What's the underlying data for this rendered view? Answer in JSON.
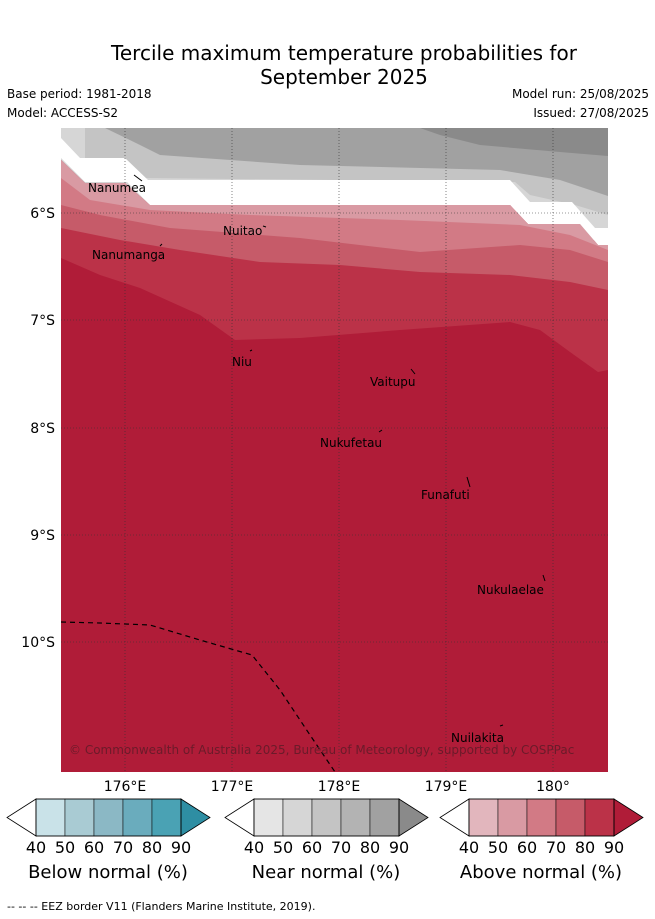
{
  "title_line1": "Tercile maximum temperature probabilities for",
  "title_line2": "September 2025",
  "base_period": "Base period: 1981-2018",
  "model": "Model: ACCESS-S2",
  "model_run": "Model run: 25/08/2025",
  "issued": "Issued: 27/08/2025",
  "map": {
    "lon_ticks": [
      "176°E",
      "177°E",
      "178°E",
      "179°E",
      "180°"
    ],
    "lat_ticks": [
      "6°S",
      "7°S",
      "8°S",
      "9°S",
      "10°S"
    ],
    "places": [
      {
        "name": "Nanumea"
      },
      {
        "name": "Nuitao"
      },
      {
        "name": "Nanumanga"
      },
      {
        "name": "Niu"
      },
      {
        "name": "Vaitupu"
      },
      {
        "name": "Nukufetau"
      },
      {
        "name": "Funafuti"
      },
      {
        "name": "Nukulaelae"
      },
      {
        "name": "Nuilakita"
      }
    ],
    "copyright": "© Commonwealth of Australia 2025, Bureau of Meteorology, supported by COSPPac"
  },
  "colorbars": [
    {
      "label": "Below normal (%)",
      "colors": [
        "#ffffff",
        "#c9e2e8",
        "#a9cbd3",
        "#8bb8c5",
        "#6aacbd",
        "#4aa2b4",
        "#2e8ea3"
      ]
    },
    {
      "label": "Near normal (%)",
      "colors": [
        "#ffffff",
        "#e5e5e5",
        "#d6d6d6",
        "#c4c4c4",
        "#b3b3b3",
        "#a1a1a1",
        "#8a8a8a"
      ]
    },
    {
      "label": "Above normal (%)",
      "colors": [
        "#ffffff",
        "#e2b6bd",
        "#d99aa3",
        "#d27a85",
        "#c65b69",
        "#bb3248",
        "#b01c38"
      ]
    }
  ],
  "colorbar_ticks": [
    "40",
    "50",
    "60",
    "70",
    "80",
    "90"
  ],
  "footnote": "--  --  -- EEZ border V11 (Flanders Marine Institute, 2019)."
}
